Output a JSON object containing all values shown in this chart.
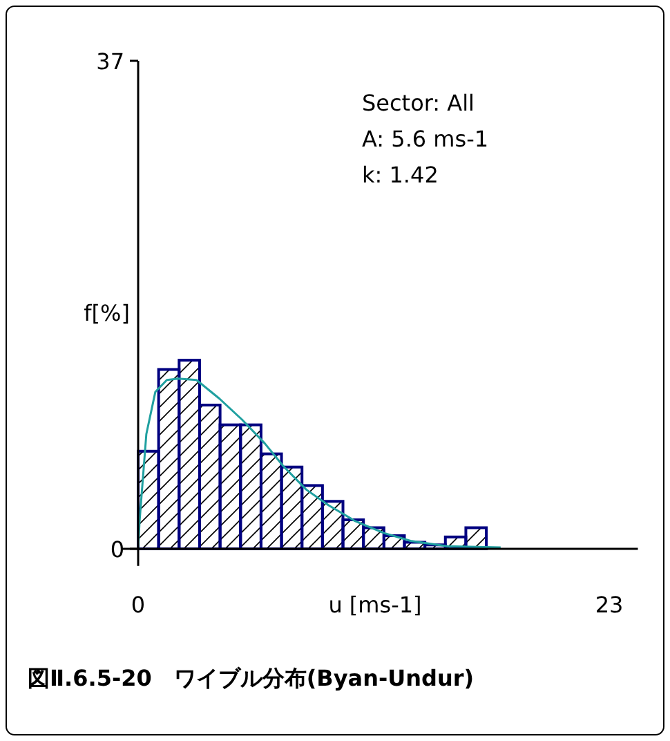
{
  "chart_data": {
    "type": "histogram",
    "title": "図Ⅱ.6.5-20　ワイブル分布(Byan-Undur)",
    "xlabel": "u [ms-1]",
    "ylabel": "f[%]",
    "annotations": [
      "Sector: All",
      "A: 5.6 ms-1",
      "k: 1.42"
    ],
    "xlim": [
      -0.8,
      24.4
    ],
    "ylim": [
      -1.3,
      37
    ],
    "xticks": [
      0,
      23
    ],
    "yticks": [
      0,
      37
    ],
    "grid": false,
    "series": [
      {
        "type": "histogram",
        "color": "#000080",
        "bins": [
          0,
          1,
          2,
          3,
          4,
          5,
          6,
          7,
          8,
          9,
          10,
          11,
          12,
          13,
          14,
          15,
          16,
          17
        ],
        "values": [
          7.4,
          13.6,
          14.3,
          10.9,
          9.4,
          9.4,
          7.2,
          6.2,
          4.8,
          3.6,
          2.2,
          1.6,
          1.0,
          0.5,
          0.3,
          0.9,
          1.6
        ]
      },
      {
        "type": "line",
        "color": "#20a0a0",
        "x": [
          0,
          0.07,
          0.4,
          0.84,
          1.4,
          1.96,
          2.85,
          3.96,
          5.07,
          6.18,
          7.07,
          8.2,
          9.3,
          10.6,
          12,
          13.3,
          15.1,
          17.7
        ],
        "values": [
          0,
          2.1,
          8.7,
          11.9,
          12.8,
          12.9,
          12.8,
          11.4,
          9.8,
          8.0,
          6.3,
          4.5,
          3.3,
          2.1,
          1.2,
          0.6,
          0.2,
          0.1
        ]
      }
    ]
  }
}
